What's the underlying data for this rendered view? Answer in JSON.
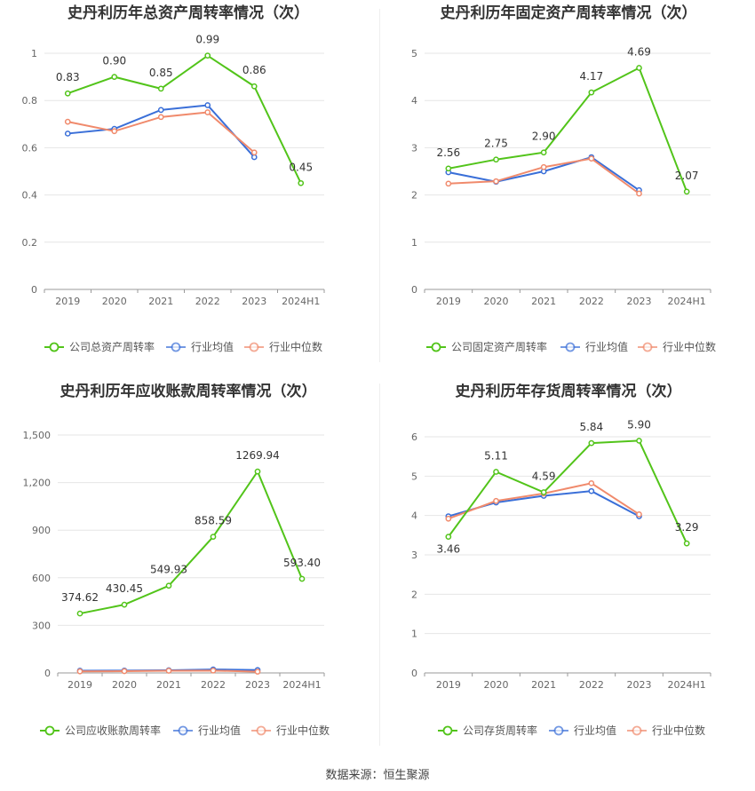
{
  "source_text": "数据来源：恒生聚源",
  "chart_data": [
    {
      "type": "line",
      "title": "史丹利历年总资产周转率情况（次）",
      "categories": [
        "2019",
        "2020",
        "2021",
        "2022",
        "2023",
        "2024H1"
      ],
      "ylim": [
        0,
        1.0
      ],
      "yticks": [
        0,
        0.2,
        0.4,
        0.6,
        0.8,
        1
      ],
      "ytick_labels": [
        "0",
        "0.2",
        "0.4",
        "0.6",
        "0.8",
        "1"
      ],
      "series": [
        {
          "name": "公司总资产周转率",
          "color": "#52c41a",
          "values": [
            0.83,
            0.9,
            0.85,
            0.99,
            0.86,
            0.45
          ],
          "labels": [
            "0.83",
            "0.90",
            "0.85",
            "0.99",
            "0.86",
            "0.45"
          ]
        },
        {
          "name": "行业均值",
          "color": "#3a6fd8",
          "values": [
            0.66,
            0.68,
            0.76,
            0.78,
            0.56,
            null
          ]
        },
        {
          "name": "行业中位数",
          "color": "#f08a6c",
          "values": [
            0.71,
            0.67,
            0.73,
            0.75,
            0.58,
            null
          ]
        }
      ]
    },
    {
      "type": "line",
      "title": "史丹利历年固定资产周转率情况（次）",
      "categories": [
        "2019",
        "2020",
        "2021",
        "2022",
        "2023",
        "2024H1"
      ],
      "ylim": [
        0,
        5
      ],
      "yticks": [
        0,
        1,
        2,
        3,
        4,
        5
      ],
      "ytick_labels": [
        "0",
        "1",
        "2",
        "3",
        "4",
        "5"
      ],
      "series": [
        {
          "name": "公司固定资产周转率",
          "color": "#52c41a",
          "values": [
            2.56,
            2.75,
            2.9,
            4.17,
            4.69,
            2.07
          ],
          "labels": [
            "2.56",
            "2.75",
            "2.90",
            "4.17",
            "4.69",
            "2.07"
          ]
        },
        {
          "name": "行业均值",
          "color": "#3a6fd8",
          "values": [
            2.48,
            2.28,
            2.5,
            2.8,
            2.1,
            null
          ]
        },
        {
          "name": "行业中位数",
          "color": "#f08a6c",
          "values": [
            2.24,
            2.29,
            2.59,
            2.77,
            2.03,
            null
          ]
        }
      ]
    },
    {
      "type": "line",
      "title": "史丹利历年应收账款周转率情况（次）",
      "categories": [
        "2019",
        "2020",
        "2021",
        "2022",
        "2023",
        "2024H1"
      ],
      "ylim": [
        0,
        1500
      ],
      "yticks": [
        0,
        300,
        600,
        900,
        1200,
        1500
      ],
      "ytick_labels": [
        "0",
        "300",
        "600",
        "900",
        "1,200",
        "1,500"
      ],
      "series": [
        {
          "name": "公司应收账款周转率",
          "color": "#52c41a",
          "values": [
            374.62,
            430.45,
            549.93,
            858.59,
            1269.94,
            593.4
          ],
          "labels": [
            "374.62",
            "430.45",
            "549.93",
            "858.59",
            "1269.94",
            "593.40"
          ]
        },
        {
          "name": "行业均值",
          "color": "#3a6fd8",
          "values": [
            14,
            15,
            17,
            22,
            18,
            null
          ]
        },
        {
          "name": "行业中位数",
          "color": "#f08a6c",
          "values": [
            10,
            11,
            14,
            15,
            8,
            null
          ]
        }
      ]
    },
    {
      "type": "line",
      "title": "史丹利历年存货周转率情况（次）",
      "categories": [
        "2019",
        "2020",
        "2021",
        "2022",
        "2023",
        "2024H1"
      ],
      "ylim": [
        0,
        6
      ],
      "yticks": [
        0,
        1,
        2,
        3,
        4,
        5,
        6
      ],
      "ytick_labels": [
        "0",
        "1",
        "2",
        "3",
        "4",
        "5",
        "6"
      ],
      "series": [
        {
          "name": "公司存货周转率",
          "color": "#52c41a",
          "values": [
            3.46,
            5.11,
            4.59,
            5.84,
            5.9,
            3.29
          ],
          "labels": [
            "3.46",
            "5.11",
            "4.59",
            "5.84",
            "5.90",
            "3.29"
          ]
        },
        {
          "name": "行业均值",
          "color": "#3a6fd8",
          "values": [
            3.98,
            4.33,
            4.5,
            4.62,
            3.98,
            null
          ]
        },
        {
          "name": "行业中位数",
          "color": "#f08a6c",
          "values": [
            3.92,
            4.37,
            4.56,
            4.82,
            4.03,
            null
          ]
        }
      ]
    }
  ]
}
